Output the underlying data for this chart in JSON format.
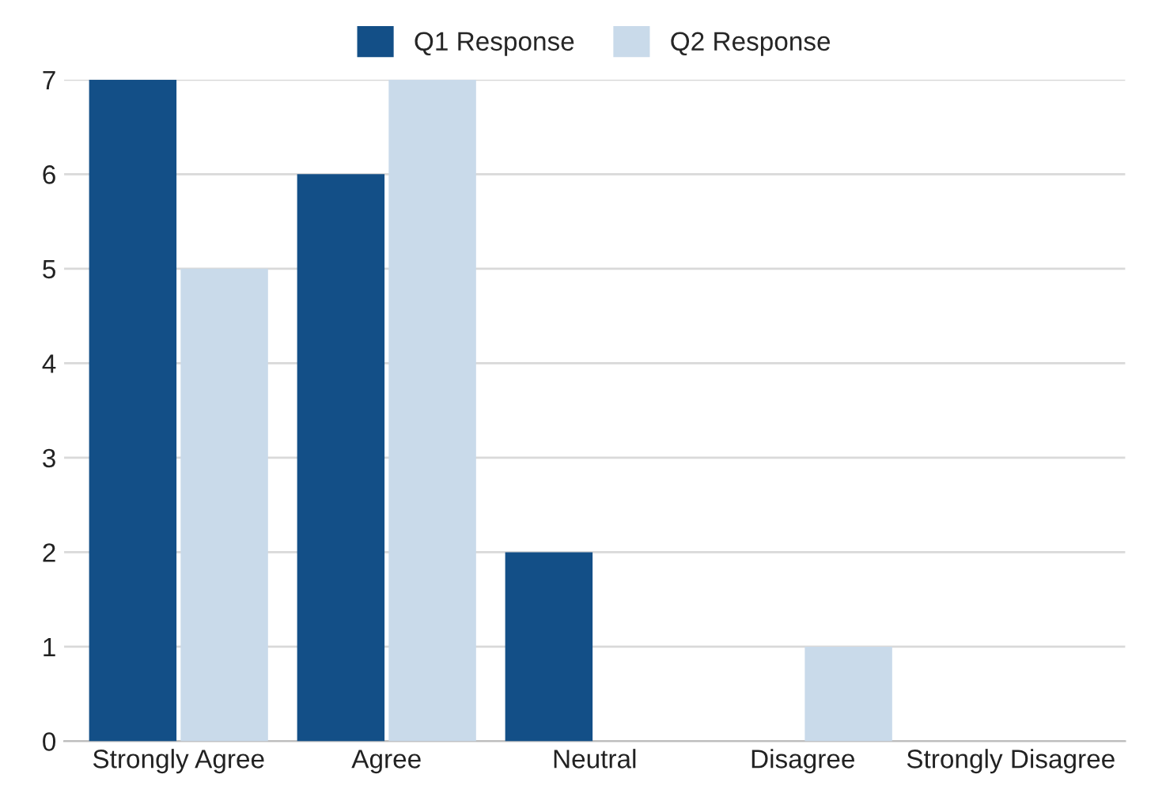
{
  "chart_data": {
    "type": "bar",
    "categories": [
      "Strongly Agree",
      "Agree",
      "Neutral",
      "Disagree",
      "Strongly Disagree"
    ],
    "series": [
      {
        "name": "Q1 Response",
        "color": "#134f87",
        "values": [
          7,
          6,
          2,
          0,
          0
        ]
      },
      {
        "name": "Q2 Response",
        "color": "#c9daea",
        "values": [
          5,
          7,
          0,
          1,
          0
        ]
      }
    ],
    "ylim": [
      0,
      7
    ],
    "yticks": [
      0,
      1,
      2,
      3,
      4,
      5,
      6,
      7
    ],
    "grid": "y",
    "legend": "top"
  }
}
